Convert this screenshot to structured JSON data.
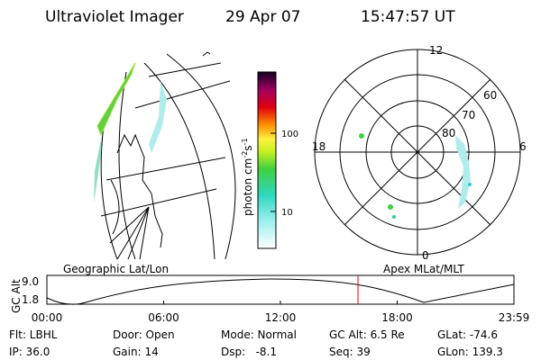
{
  "header": {
    "instrument": "Ultraviolet Imager",
    "date": "29 Apr 07",
    "time": "15:47:57 UT"
  },
  "colorbar": {
    "label": {
      "base": "photon cm",
      "exp1": "-2",
      "unit2": "s",
      "exp2": "-1"
    },
    "ticks": [
      "100",
      "10"
    ]
  },
  "polar": {
    "mlt_labels": [
      "12",
      "18",
      "6",
      "0"
    ],
    "lat_labels": [
      "60",
      "70",
      "80"
    ]
  },
  "panels": {
    "left": "Geographic Lat/Lon",
    "right": "Apex MLat/MLT"
  },
  "altitude_plot": {
    "axis_label": "GC Alt",
    "y_labels": [
      "9.0",
      "1.8"
    ],
    "time_labels": [
      "00:00",
      "06:00",
      "12:00",
      "18:00",
      "23:59"
    ]
  },
  "footer": {
    "rows": [
      [
        "Flt: LBHL",
        "Door: Open",
        "Mode: Normal",
        "GC Alt: 6.5 Re",
        "GLat: -74.6"
      ],
      [
        "IP: 36.0",
        "Gain: 14",
        "Dsp:   -8.1",
        "Seq: 39",
        "GLon: 139.3"
      ]
    ]
  }
}
